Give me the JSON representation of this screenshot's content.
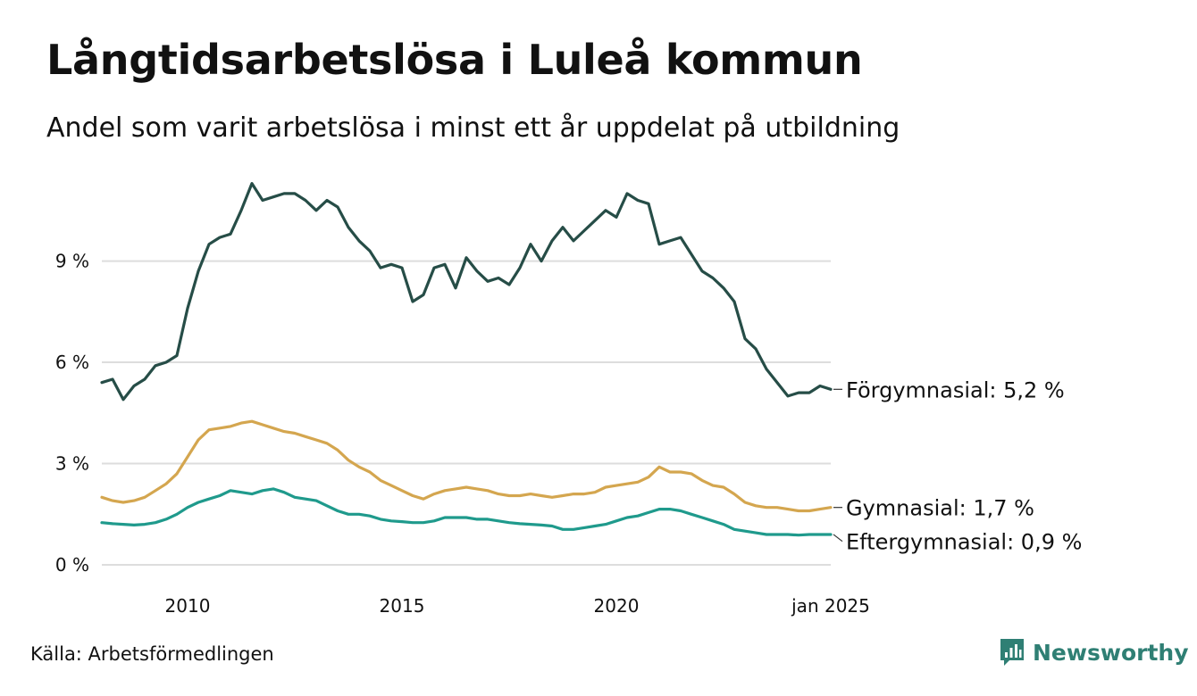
{
  "title": "Långtidsarbetslösa i Luleå kommun",
  "subtitle": "Andel som varit arbetslösa i minst ett år uppdelat på utbildning",
  "source": "Källa: Arbetsförmedlingen",
  "brand": {
    "name": "Newsworthy",
    "icon": "newsworthy-logo-icon",
    "color": "#2f7f74"
  },
  "chart_data": {
    "type": "line",
    "title": "Långtidsarbetslösa i Luleå kommun",
    "subtitle": "Andel som varit arbetslösa i minst ett år uppdelat på utbildning",
    "xlabel": "",
    "ylabel": "",
    "unit": "%",
    "x_range": [
      2008.0,
      2025.0
    ],
    "ylim": [
      0,
      11.5
    ],
    "grid": true,
    "y_ticks": [
      0,
      3,
      6,
      9
    ],
    "y_tick_labels": [
      "0 %",
      "3 %",
      "6 %",
      "9 %"
    ],
    "x_ticks": [
      2010,
      2015,
      2020,
      2025
    ],
    "x_tick_labels": [
      "2010",
      "2015",
      "2020",
      "jan 2025"
    ],
    "series": [
      {
        "name": "Förgymnasial",
        "label": "Förgymnasial: 5,2 %",
        "color": "#264d47",
        "x": [
          2008.0,
          2008.25,
          2008.5,
          2008.75,
          2009.0,
          2009.25,
          2009.5,
          2009.75,
          2010.0,
          2010.25,
          2010.5,
          2010.75,
          2011.0,
          2011.25,
          2011.5,
          2011.75,
          2012.0,
          2012.25,
          2012.5,
          2012.75,
          2013.0,
          2013.25,
          2013.5,
          2013.75,
          2014.0,
          2014.25,
          2014.5,
          2014.75,
          2015.0,
          2015.25,
          2015.5,
          2015.75,
          2016.0,
          2016.25,
          2016.5,
          2016.75,
          2017.0,
          2017.25,
          2017.5,
          2017.75,
          2018.0,
          2018.25,
          2018.5,
          2018.75,
          2019.0,
          2019.25,
          2019.5,
          2019.75,
          2020.0,
          2020.25,
          2020.5,
          2020.75,
          2021.0,
          2021.25,
          2021.5,
          2021.75,
          2022.0,
          2022.25,
          2022.5,
          2022.75,
          2023.0,
          2023.25,
          2023.5,
          2023.75,
          2024.0,
          2024.25,
          2024.5,
          2024.75,
          2025.0
        ],
        "values": [
          5.4,
          5.5,
          4.9,
          5.3,
          5.5,
          5.9,
          6.0,
          6.2,
          7.6,
          8.7,
          9.5,
          9.7,
          9.8,
          10.5,
          11.3,
          10.8,
          10.9,
          11.0,
          11.0,
          10.8,
          10.5,
          10.8,
          10.6,
          10.0,
          9.6,
          9.3,
          8.8,
          8.9,
          8.8,
          7.8,
          8.0,
          8.8,
          8.9,
          8.2,
          9.1,
          8.7,
          8.4,
          8.5,
          8.3,
          8.8,
          9.5,
          9.0,
          9.6,
          10.0,
          9.6,
          9.9,
          10.2,
          10.5,
          10.3,
          11.0,
          10.8,
          10.7,
          9.5,
          9.6,
          9.7,
          9.2,
          8.7,
          8.5,
          8.2,
          7.8,
          6.7,
          6.4,
          5.8,
          5.4,
          5.0,
          5.1,
          5.1,
          5.3,
          5.2
        ]
      },
      {
        "name": "Gymnasial",
        "label": "Gymnasial: 1,7 %",
        "color": "#d4a64f",
        "x": [
          2008.0,
          2008.25,
          2008.5,
          2008.75,
          2009.0,
          2009.25,
          2009.5,
          2009.75,
          2010.0,
          2010.25,
          2010.5,
          2010.75,
          2011.0,
          2011.25,
          2011.5,
          2011.75,
          2012.0,
          2012.25,
          2012.5,
          2012.75,
          2013.0,
          2013.25,
          2013.5,
          2013.75,
          2014.0,
          2014.25,
          2014.5,
          2014.75,
          2015.0,
          2015.25,
          2015.5,
          2015.75,
          2016.0,
          2016.25,
          2016.5,
          2016.75,
          2017.0,
          2017.25,
          2017.5,
          2017.75,
          2018.0,
          2018.25,
          2018.5,
          2018.75,
          2019.0,
          2019.25,
          2019.5,
          2019.75,
          2020.0,
          2020.25,
          2020.5,
          2020.75,
          2021.0,
          2021.25,
          2021.5,
          2021.75,
          2022.0,
          2022.25,
          2022.5,
          2022.75,
          2023.0,
          2023.25,
          2023.5,
          2023.75,
          2024.0,
          2024.25,
          2024.5,
          2024.75,
          2025.0
        ],
        "values": [
          2.0,
          1.9,
          1.85,
          1.9,
          2.0,
          2.2,
          2.4,
          2.7,
          3.2,
          3.7,
          4.0,
          4.05,
          4.1,
          4.2,
          4.25,
          4.15,
          4.05,
          3.95,
          3.9,
          3.8,
          3.7,
          3.6,
          3.4,
          3.1,
          2.9,
          2.75,
          2.5,
          2.35,
          2.2,
          2.05,
          1.95,
          2.1,
          2.2,
          2.25,
          2.3,
          2.25,
          2.2,
          2.1,
          2.05,
          2.05,
          2.1,
          2.05,
          2.0,
          2.05,
          2.1,
          2.1,
          2.15,
          2.3,
          2.35,
          2.4,
          2.45,
          2.6,
          2.9,
          2.75,
          2.75,
          2.7,
          2.5,
          2.35,
          2.3,
          2.1,
          1.85,
          1.75,
          1.7,
          1.7,
          1.65,
          1.6,
          1.6,
          1.65,
          1.7
        ]
      },
      {
        "name": "Eftergymnasial",
        "label": "Eftergymnasial: 0,9 %",
        "color": "#1f9a8c",
        "x": [
          2008.0,
          2008.25,
          2008.5,
          2008.75,
          2009.0,
          2009.25,
          2009.5,
          2009.75,
          2010.0,
          2010.25,
          2010.5,
          2010.75,
          2011.0,
          2011.25,
          2011.5,
          2011.75,
          2012.0,
          2012.25,
          2012.5,
          2012.75,
          2013.0,
          2013.25,
          2013.5,
          2013.75,
          2014.0,
          2014.25,
          2014.5,
          2014.75,
          2015.0,
          2015.25,
          2015.5,
          2015.75,
          2016.0,
          2016.25,
          2016.5,
          2016.75,
          2017.0,
          2017.25,
          2017.5,
          2017.75,
          2018.0,
          2018.25,
          2018.5,
          2018.75,
          2019.0,
          2019.25,
          2019.5,
          2019.75,
          2020.0,
          2020.25,
          2020.5,
          2020.75,
          2021.0,
          2021.25,
          2021.5,
          2021.75,
          2022.0,
          2022.25,
          2022.5,
          2022.75,
          2023.0,
          2023.25,
          2023.5,
          2023.75,
          2024.0,
          2024.25,
          2024.5,
          2024.75,
          2025.0
        ],
        "values": [
          1.25,
          1.22,
          1.2,
          1.18,
          1.2,
          1.25,
          1.35,
          1.5,
          1.7,
          1.85,
          1.95,
          2.05,
          2.2,
          2.15,
          2.1,
          2.2,
          2.25,
          2.15,
          2.0,
          1.95,
          1.9,
          1.75,
          1.6,
          1.5,
          1.5,
          1.45,
          1.35,
          1.3,
          1.28,
          1.25,
          1.25,
          1.3,
          1.4,
          1.4,
          1.4,
          1.35,
          1.35,
          1.3,
          1.25,
          1.22,
          1.2,
          1.18,
          1.15,
          1.05,
          1.05,
          1.1,
          1.15,
          1.2,
          1.3,
          1.4,
          1.45,
          1.55,
          1.65,
          1.65,
          1.6,
          1.5,
          1.4,
          1.3,
          1.2,
          1.05,
          1.0,
          0.95,
          0.9,
          0.9,
          0.9,
          0.88,
          0.9,
          0.9,
          0.9
        ]
      }
    ]
  }
}
